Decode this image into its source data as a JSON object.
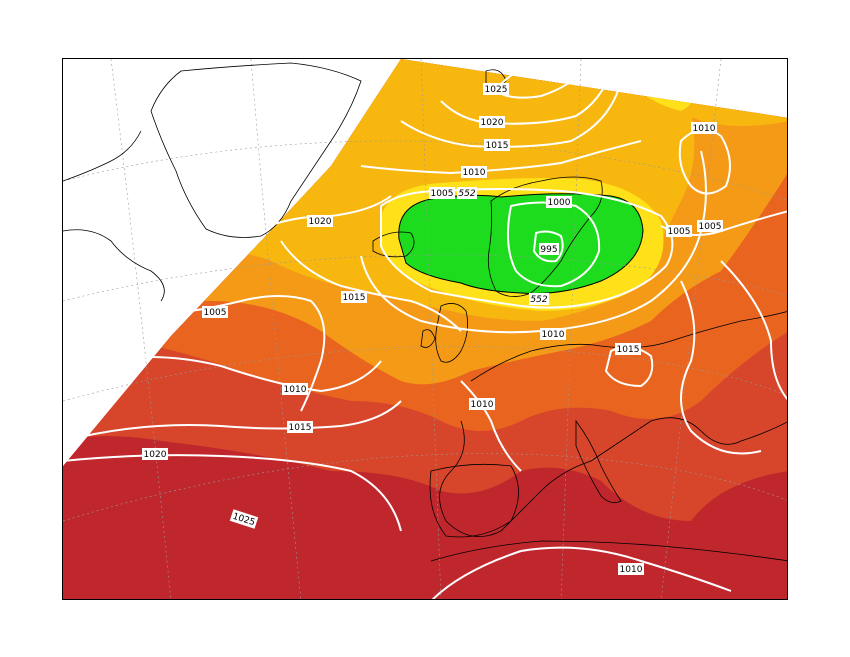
{
  "map": {
    "colors": {
      "darkred": "#a50026",
      "red": "#c0272d",
      "redorange": "#d7452a",
      "orange": "#e8641f",
      "amber": "#f59a17",
      "gold": "#f7b70f",
      "yellow": "#ffe11a",
      "green": "#1ddb1d",
      "isobar": "#ffffff"
    },
    "isobar_labels": [
      {
        "id": "lbl-1025-north",
        "text": "1025"
      },
      {
        "id": "lbl-1020-north",
        "text": "1020"
      },
      {
        "id": "lbl-1015-north",
        "text": "1015"
      },
      {
        "id": "lbl-1010-north",
        "text": "1010"
      },
      {
        "id": "lbl-1010-ne",
        "text": "1010"
      },
      {
        "id": "lbl-1005-north",
        "text": "1005"
      },
      {
        "id": "lbl-552-north",
        "text": "552"
      },
      {
        "id": "lbl-1000",
        "text": "1000"
      },
      {
        "id": "lbl-995",
        "text": "995"
      },
      {
        "id": "lbl-552-south",
        "text": "552"
      },
      {
        "id": "lbl-1020-west",
        "text": "1020"
      },
      {
        "id": "lbl-1015-mid",
        "text": "1015"
      },
      {
        "id": "lbl-1005-west",
        "text": "1005"
      },
      {
        "id": "lbl-1005-east",
        "text": "1005"
      },
      {
        "id": "lbl-1005-far-east",
        "text": "1005"
      },
      {
        "id": "lbl-1010-baltic",
        "text": "1010"
      },
      {
        "id": "lbl-1015-balkans",
        "text": "1015"
      },
      {
        "id": "lbl-1010-west",
        "text": "1010"
      },
      {
        "id": "lbl-1010-france",
        "text": "1010"
      },
      {
        "id": "lbl-1015-atlantic",
        "text": "1015"
      },
      {
        "id": "lbl-1020-atlantic",
        "text": "1020"
      },
      {
        "id": "lbl-1025-azores",
        "text": "1025"
      },
      {
        "id": "lbl-1010-med",
        "text": "1010"
      }
    ]
  }
}
